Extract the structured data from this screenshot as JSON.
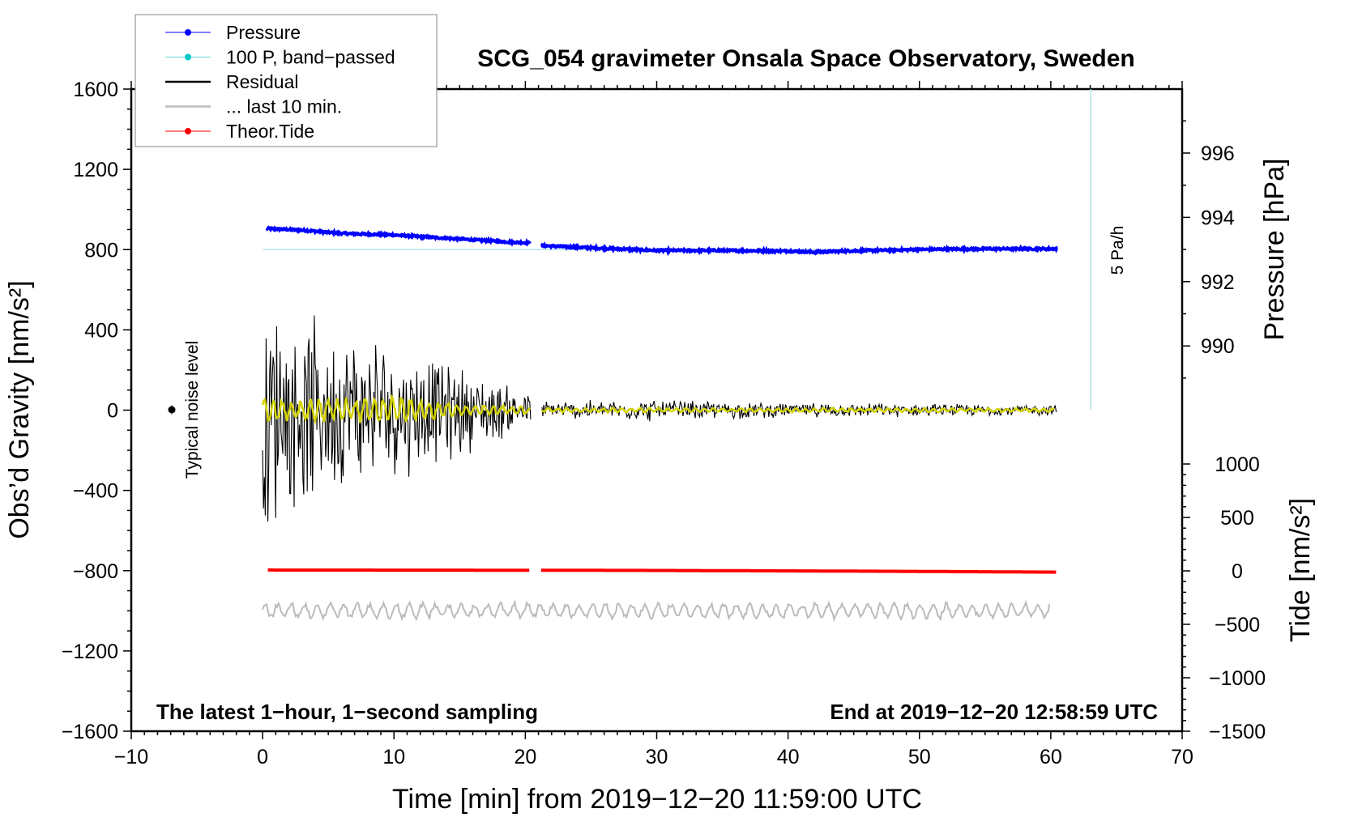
{
  "chart_data": {
    "type": "line",
    "title": "SCG_054 gravimeter Onsala Space Observatory, Sweden",
    "xlabel": "Time [min] from 2019−12−20 11:59:00 UTC",
    "ylabel_left": "Obs’d Gravity [nm/s²]",
    "ylabel_right_top": "Pressure [hPa]",
    "ylabel_right_bottom": "Tide [nm/s²]",
    "xlim": [
      -10,
      70
    ],
    "ylim_left": [
      -1600,
      1600
    ],
    "pressure_axis_range": [
      988,
      998
    ],
    "tide_axis_range": [
      -1500,
      1000
    ],
    "x_ticks": [
      "−10",
      "0",
      "10",
      "20",
      "30",
      "40",
      "50",
      "60",
      "70"
    ],
    "y_ticks_left": [
      "1600",
      "1200",
      "800",
      "400",
      "0",
      "−400",
      "−800",
      "−1200",
      "−1600"
    ],
    "y_ticks_pressure": [
      "996",
      "994",
      "992",
      "990"
    ],
    "y_ticks_tide": [
      "1000",
      "500",
      "0",
      "−500",
      "−1000",
      "−1500"
    ],
    "legend": {
      "placement": "top-left",
      "entries": [
        {
          "label": "Pressure",
          "color": "#0000ff"
        },
        {
          "label": "100 P, band−passed",
          "color": "#00c8c8"
        },
        {
          "label": "Residual",
          "color": "#000000"
        },
        {
          "label": "... last 10 min.",
          "color": "#bbbbbb"
        },
        {
          "label": "Theor.Tide",
          "color": "#ff0000"
        }
      ]
    },
    "annotations": {
      "left_bottom": "The latest 1−hour, 1−second sampling",
      "right_bottom": "End at 2019−12−20 12:58:59 UTC",
      "noise": "Typical noise level",
      "rate": "5 Pa/h"
    },
    "data_gap_min": [
      20.4,
      21.2
    ],
    "series": [
      {
        "name": "Pressure",
        "unit": "hPa",
        "color": "#0000ff",
        "x": [
          0.3,
          3,
          6,
          10,
          14,
          18,
          20.4,
          21.2,
          25,
          30,
          35,
          40,
          42,
          45,
          50,
          55,
          60.5
        ],
        "y": [
          993.65,
          993.6,
          993.5,
          993.45,
          993.35,
          993.25,
          993.2,
          993.12,
          993.05,
          992.97,
          992.97,
          992.95,
          992.92,
          992.96,
          993.0,
          993.02,
          993.02
        ]
      },
      {
        "name": "100 P, band-passed",
        "unit": "nm/s²",
        "color": "#99e0e0",
        "x": [
          0,
          60.5
        ],
        "y": [
          800,
          800
        ]
      },
      {
        "name": "Residual",
        "unit": "nm/s²",
        "color": "#000000",
        "envelope_x": [
          0,
          2,
          5,
          10,
          15,
          20.4,
          21.2,
          30,
          40,
          60
        ],
        "envelope_amp": [
          700,
          550,
          450,
          380,
          250,
          100,
          50,
          60,
          40,
          30
        ]
      },
      {
        "name": "Residual smoothed",
        "unit": "nm/s²",
        "color": "#d4d400",
        "envelope_x": [
          0,
          5,
          10,
          15,
          20.4,
          21.2,
          60
        ],
        "envelope_amp": [
          70,
          60,
          80,
          30,
          20,
          12,
          10
        ]
      },
      {
        "name": "... last 10 min.",
        "unit": "nm/s²",
        "color": "#bbbbbb",
        "baseline": -1000,
        "amplitude": 40,
        "x": [
          0,
          60
        ]
      },
      {
        "name": "Theor.Tide",
        "unit": "nm/s²",
        "color": "#ff0000",
        "x": [
          0.4,
          20.4,
          21.2,
          30,
          40,
          50,
          60.5
        ],
        "y": [
          8,
          6,
          6,
          4,
          0,
          -5,
          -12
        ]
      }
    ]
  }
}
